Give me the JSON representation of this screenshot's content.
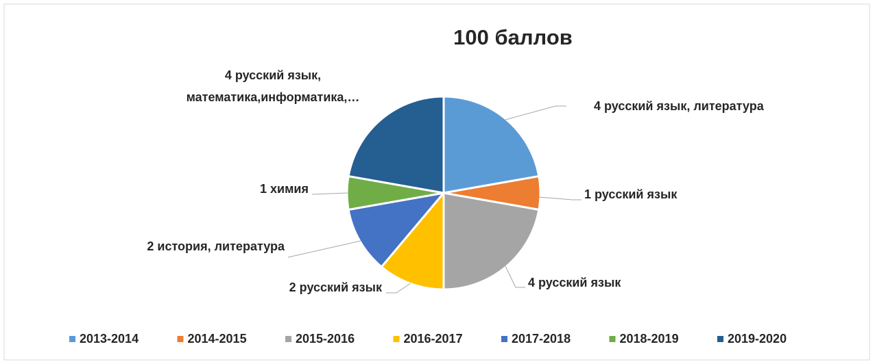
{
  "chart_data": {
    "type": "pie",
    "title": "100 баллов",
    "categories": [
      "2013-2014",
      "2014-2015",
      "2015-2016",
      "2016-2017",
      "2017-2018",
      "2018-2019",
      "2019-2020"
    ],
    "values": [
      4,
      1,
      4,
      2,
      2,
      1,
      4
    ],
    "value_labels": [
      "4 русский язык, литература",
      "1 русский язык",
      "4 русский язык",
      "2 русский язык",
      "2 история, литература",
      "1 химия",
      "4 русский язык, математика,информатика,…"
    ],
    "colors": [
      "#5b9bd5",
      "#ed7d31",
      "#a5a5a5",
      "#ffc000",
      "#4472c4",
      "#70ad47",
      "#255e91"
    ],
    "legend": "bottom"
  }
}
